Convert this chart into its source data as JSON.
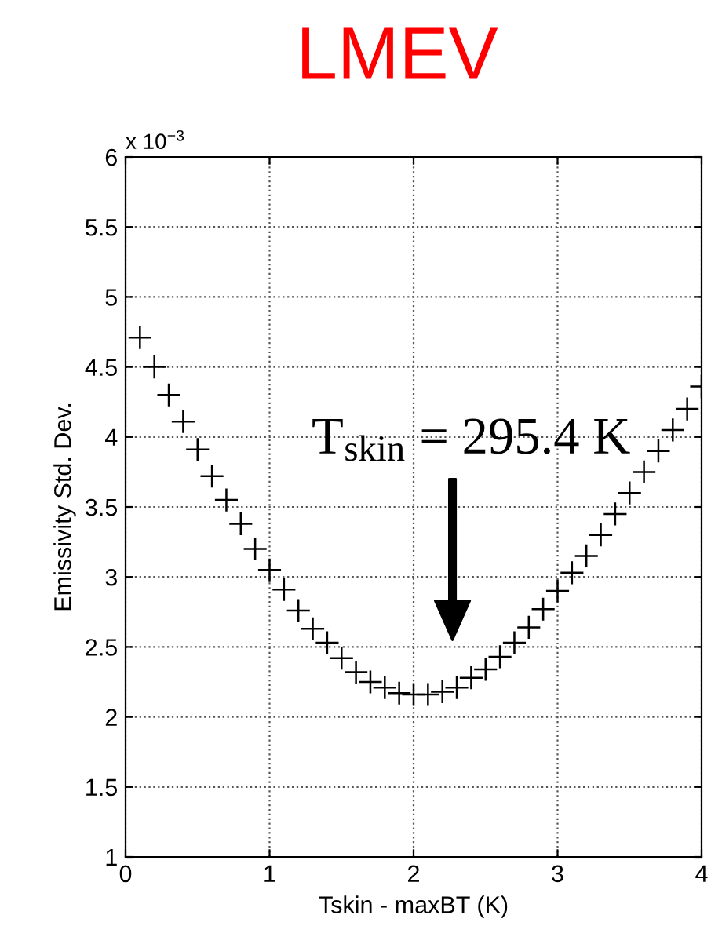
{
  "chart_data": {
    "type": "scatter",
    "title": "LMEV",
    "xlabel": "Tskin - maxBT (K)",
    "ylabel": "Emissivity Std. Dev.",
    "annotations": [
      "x 10$^{−3}$",
      "T$_{skin}$ = 295.4 K"
    ],
    "x": [
      0.1,
      0.2,
      0.3,
      0.4,
      0.5,
      0.6,
      0.7,
      0.8,
      0.9,
      1.0,
      1.1,
      1.2,
      1.3,
      1.4,
      1.5,
      1.6,
      1.7,
      1.8,
      1.9,
      2.0,
      2.1,
      2.2,
      2.3,
      2.4,
      2.5,
      2.6,
      2.7,
      2.8,
      2.9,
      3.0,
      3.1,
      3.2,
      3.3,
      3.4,
      3.5,
      3.6,
      3.7,
      3.8,
      3.9,
      4.0
    ],
    "series": [
      {
        "color": "#000000",
        "values": [
          4.71,
          4.5,
          4.3,
          4.11,
          3.91,
          3.72,
          3.55,
          3.38,
          3.2,
          3.05,
          2.91,
          2.76,
          2.63,
          2.53,
          2.42,
          2.32,
          2.25,
          2.21,
          2.17,
          2.16,
          2.16,
          2.18,
          2.21,
          2.28,
          2.34,
          2.43,
          2.53,
          2.64,
          2.77,
          2.9,
          3.03,
          3.15,
          3.3,
          3.45,
          3.6,
          3.75,
          3.9,
          4.05,
          4.2,
          4.36
        ]
      }
    ],
    "marker": "cross",
    "xlim": [
      0,
      4
    ],
    "ylim": [
      1,
      6
    ],
    "xticks": [
      0,
      1,
      2,
      3,
      4
    ],
    "yticks": [
      1,
      1.5,
      2,
      2.5,
      3,
      3.5,
      4,
      4.5,
      5,
      5.5,
      6
    ],
    "grid": true
  }
}
